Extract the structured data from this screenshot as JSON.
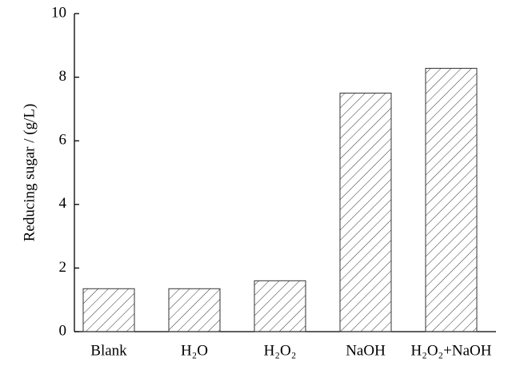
{
  "chart_data": {
    "type": "bar",
    "y_label": "Reducing sugar / (g/L)",
    "categories": [
      "Blank",
      "H₂O",
      "H₂O₂",
      "NaOH",
      "H₂O₂+NaOH"
    ],
    "values": [
      1.35,
      1.35,
      1.6,
      7.5,
      8.28
    ],
    "color": "#333333",
    "ylim": [
      0,
      10
    ],
    "yticks": [
      0,
      2,
      4,
      6,
      8,
      10
    ],
    "grid": false
  }
}
